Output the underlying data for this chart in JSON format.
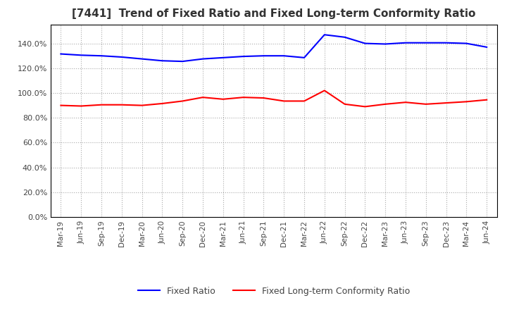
{
  "title": "[7441]  Trend of Fixed Ratio and Fixed Long-term Conformity Ratio",
  "title_fontsize": 11,
  "x_labels": [
    "Mar-19",
    "Jun-19",
    "Sep-19",
    "Dec-19",
    "Mar-20",
    "Jun-20",
    "Sep-20",
    "Dec-20",
    "Mar-21",
    "Jun-21",
    "Sep-21",
    "Dec-21",
    "Mar-22",
    "Jun-22",
    "Sep-22",
    "Dec-22",
    "Mar-23",
    "Jun-23",
    "Sep-23",
    "Dec-23",
    "Mar-24",
    "Jun-24"
  ],
  "fixed_ratio": [
    131.5,
    130.5,
    130.0,
    129.0,
    127.5,
    126.0,
    125.5,
    127.5,
    128.5,
    129.5,
    130.0,
    130.0,
    128.5,
    147.0,
    145.0,
    140.0,
    139.5,
    140.5,
    140.5,
    140.5,
    140.0,
    137.0
  ],
  "fixed_lt_conformity": [
    90.0,
    89.5,
    90.5,
    90.5,
    90.0,
    91.5,
    93.5,
    96.5,
    95.0,
    96.5,
    96.0,
    93.5,
    93.5,
    102.0,
    91.0,
    89.0,
    91.0,
    92.5,
    91.0,
    92.0,
    93.0,
    94.5
  ],
  "fixed_ratio_color": "#0000FF",
  "fixed_lt_color": "#FF0000",
  "background_color": "#FFFFFF",
  "grid_color": "#AAAAAA",
  "ylim": [
    0,
    155
  ],
  "yticks": [
    0,
    20,
    40,
    60,
    80,
    100,
    120,
    140
  ],
  "legend_fixed_ratio": "Fixed Ratio",
  "legend_fixed_lt": "Fixed Long-term Conformity Ratio"
}
